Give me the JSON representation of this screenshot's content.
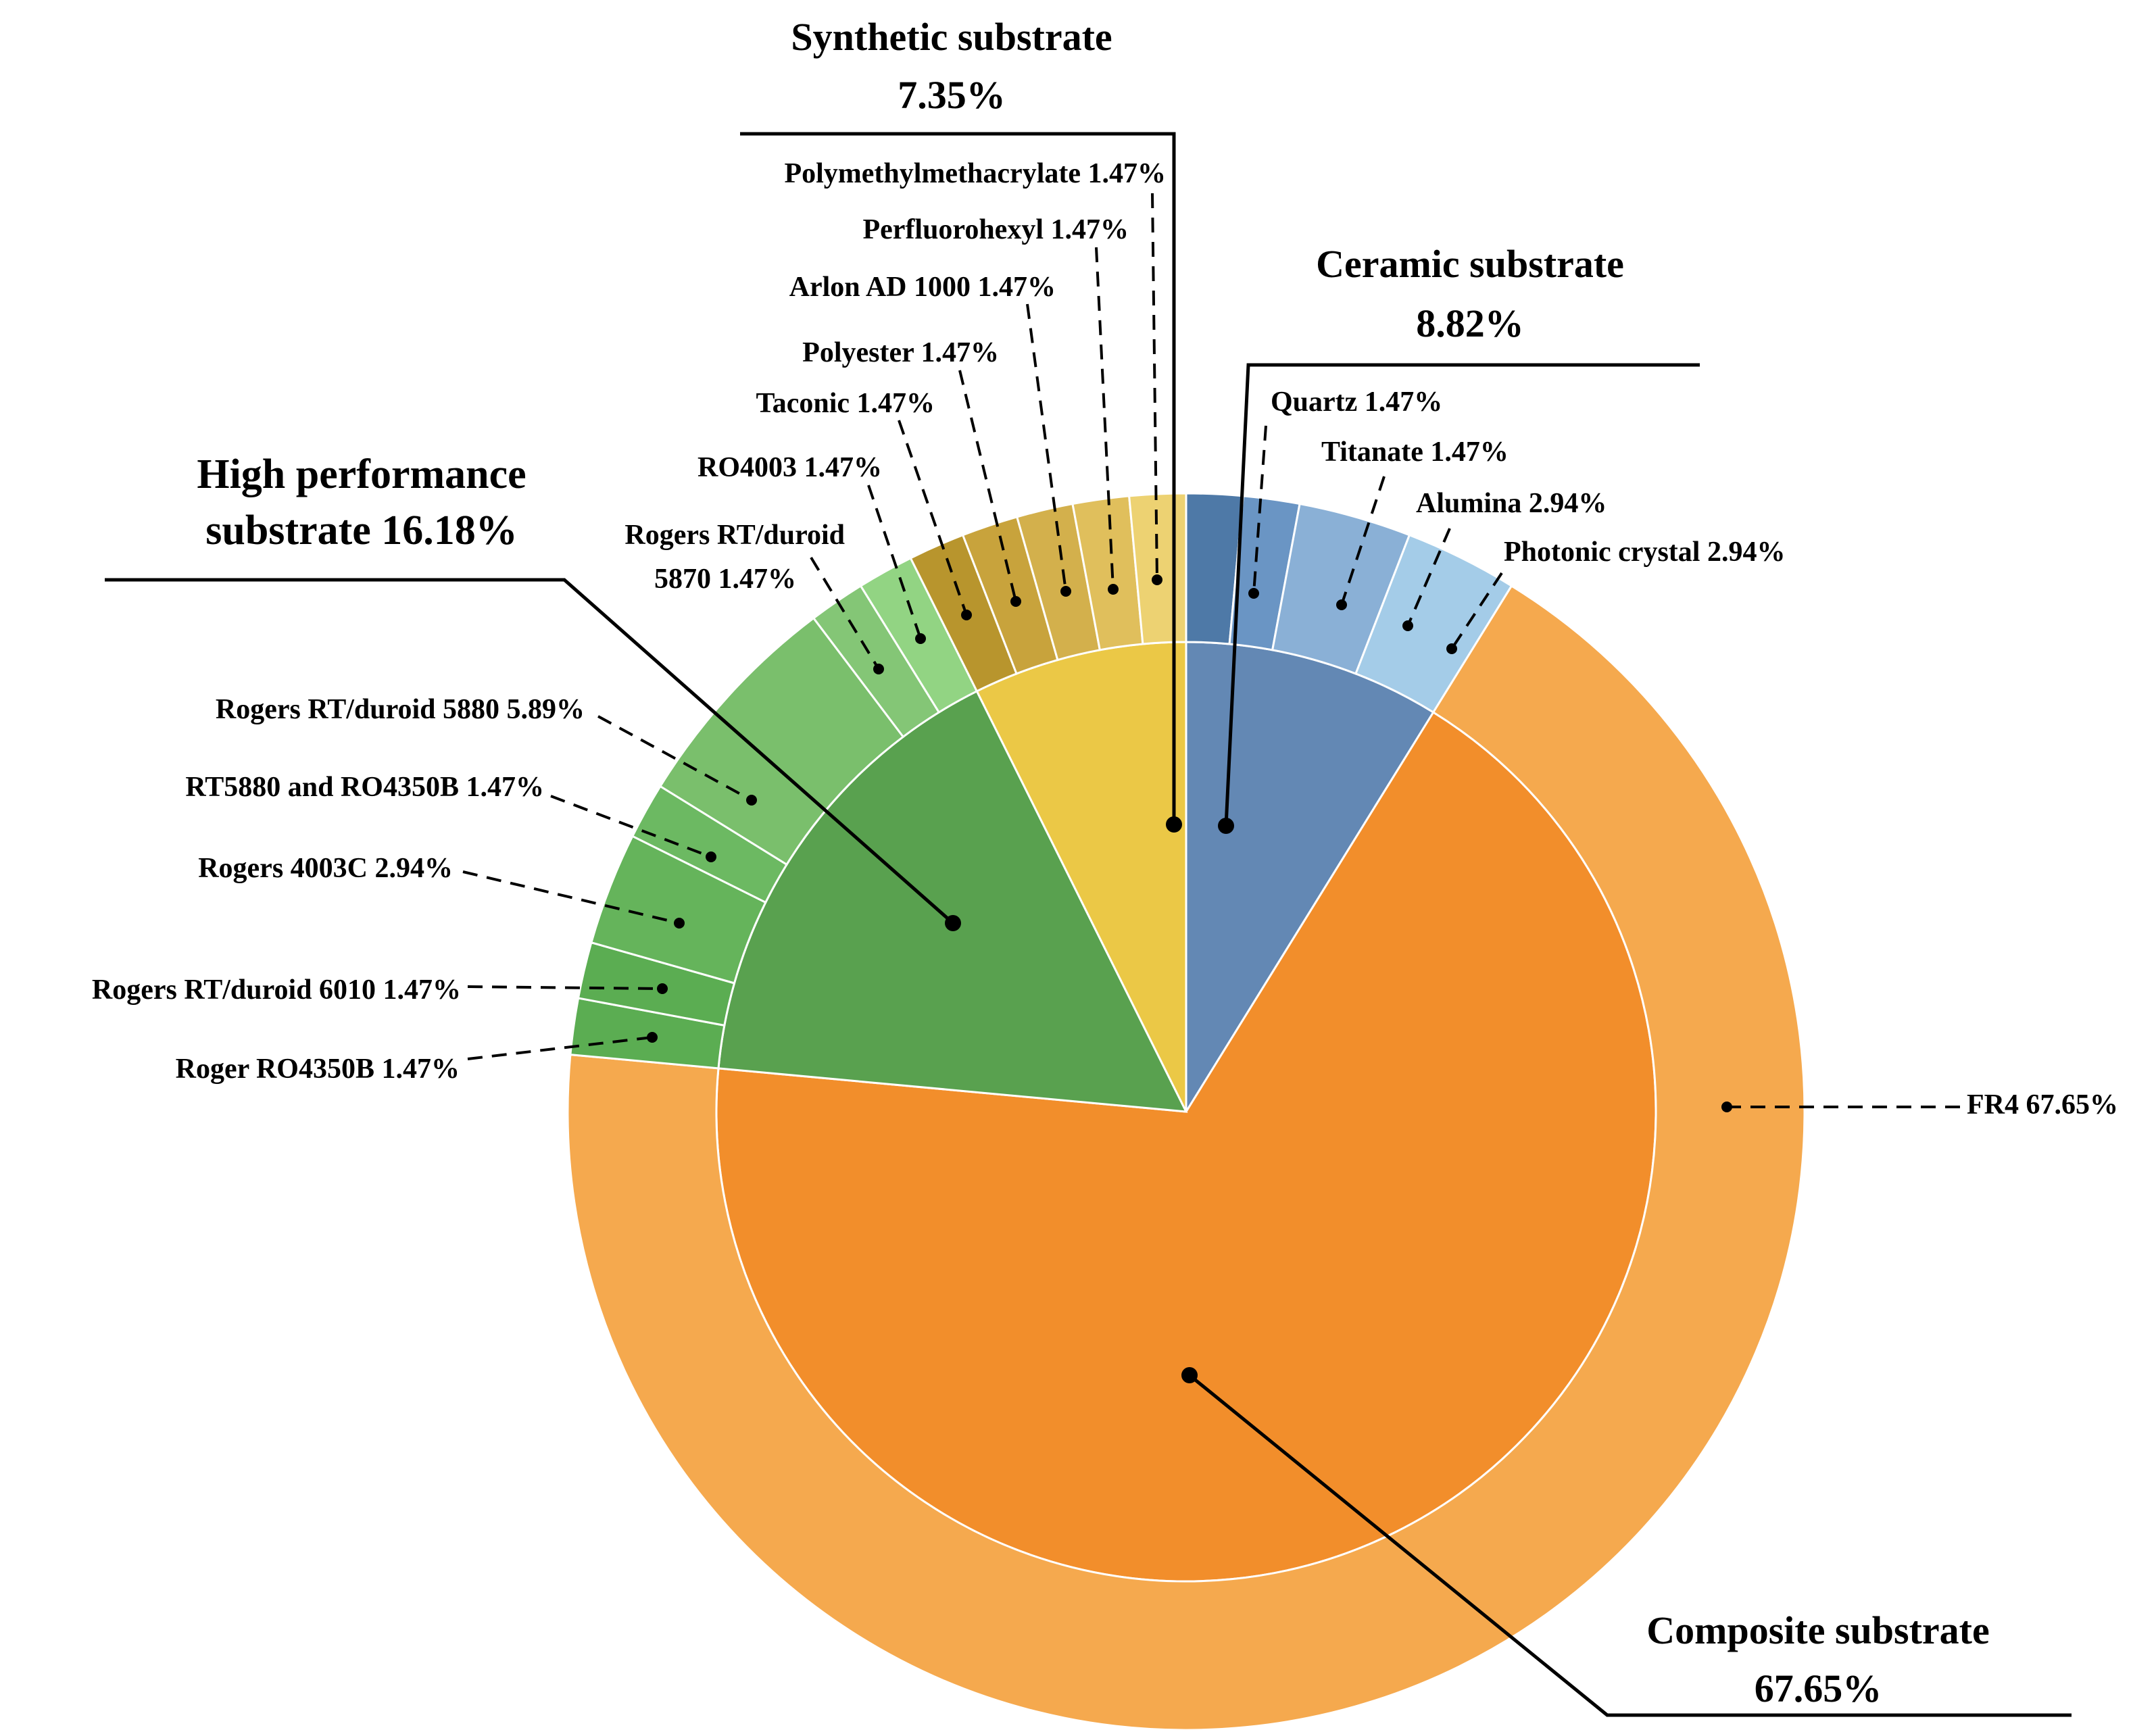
{
  "chart_data": {
    "type": "sunburst",
    "title": "",
    "groups": [
      {
        "name": "Composite substrate",
        "label": "Composite substrate",
        "value": 67.65,
        "value_label": "67.65%",
        "color": "#F28E2B",
        "child_color": "#F5A94E",
        "children": [
          {
            "name": "FR4",
            "value": 67.65,
            "label": "FR4 67.65%"
          }
        ]
      },
      {
        "name": "High performance substrate",
        "label": "High performance",
        "label2": "substrate 16.18%",
        "value": 16.18,
        "color": "#59A14F",
        "child_color": "#76BF6A",
        "children": [
          {
            "name": "Roger RO4350B",
            "value": 1.47,
            "label": "Roger RO4350B 1.47%",
            "color": "#5BAD52"
          },
          {
            "name": "Rogers RT/duroid 6010",
            "value": 1.47,
            "label": "Rogers RT/duroid 6010 1.47%",
            "color": "#5BAD52"
          },
          {
            "name": "Rogers 4003C",
            "value": 2.94,
            "label": "Rogers 4003C 2.94%",
            "color": "#65B45B"
          },
          {
            "name": "RT5880 and RO4350B",
            "value": 1.47,
            "label": "RT5880 and RO4350B 1.47%",
            "color": "#6CB962"
          },
          {
            "name": "Rogers RT/duroid 5880",
            "value": 5.89,
            "label": "Rogers RT/duroid 5880 5.89%",
            "color": "#7ABF6C"
          },
          {
            "name": "Rogers RT/duroid 5870",
            "value": 1.47,
            "label": "Rogers RT/duroid",
            "label2": "5870 1.47%",
            "color": "#84C676"
          },
          {
            "name": "RO4003",
            "value": 1.47,
            "label": "RO4003 1.47%",
            "color": "#92D483"
          }
        ]
      },
      {
        "name": "Synthetic substrate",
        "label": "Synthetic substrate",
        "value": 7.35,
        "value_label": "7.35%",
        "color": "#EBC846",
        "child_color": "#E2BA55",
        "children": [
          {
            "name": "Taconic",
            "value": 1.47,
            "label": "Taconic 1.47%",
            "color": "#B8952D"
          },
          {
            "name": "Polyester",
            "value": 1.47,
            "label": "Polyester 1.47%",
            "color": "#C8A33C"
          },
          {
            "name": "Arlon AD 1000",
            "value": 1.47,
            "label": "Arlon AD 1000 1.47%",
            "color": "#D3B04C"
          },
          {
            "name": "Perfluorohexyl",
            "value": 1.47,
            "label": "Perfluorohexyl 1.47%",
            "color": "#E0BF5C"
          },
          {
            "name": "Polymethylmethacrylate",
            "value": 1.47,
            "label": "Polymethylmethacrylate 1.47%",
            "color": "#EDD272"
          }
        ]
      },
      {
        "name": "Ceramic substrate",
        "label": "Ceramic substrate",
        "value": 8.82,
        "value_label": "8.82%",
        "color": "#6388B4",
        "child_color": "#6A95C4",
        "children": [
          {
            "name": "Quartz",
            "value": 1.47,
            "label": "Quartz 1.47%",
            "color": "#4E79A7"
          },
          {
            "name": "Titanate",
            "value": 1.47,
            "label": "Titanate 1.47%",
            "color": "#6A95C4"
          },
          {
            "name": "Alumina",
            "value": 2.94,
            "label": "Alumina 2.94%",
            "color": "#8AB0D6"
          },
          {
            "name": "Photonic crystal",
            "value": 2.94,
            "label": "Photonic crystal 2.94%",
            "color": "#A4CCE8"
          }
        ]
      }
    ],
    "outer_order_clockwise_from_top": [
      "Quartz",
      "Titanate",
      "Alumina",
      "Photonic crystal",
      "FR4",
      "Roger RO4350B",
      "Rogers RT/duroid 6010",
      "Rogers 4003C",
      "RT5880 and RO4350B",
      "Rogers RT/duroid 5880",
      "Rogers RT/duroid 5870",
      "RO4003",
      "Taconic",
      "Polyester",
      "Arlon AD 1000",
      "Perfluorohexyl",
      "Polymethylmethacrylate"
    ]
  }
}
